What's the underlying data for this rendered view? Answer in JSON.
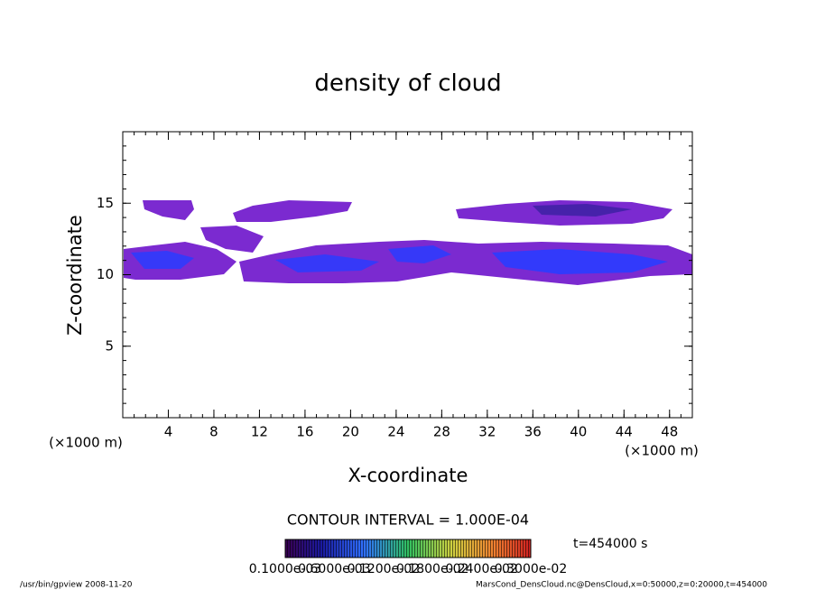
{
  "chart_data": {
    "type": "contour",
    "title": "density of cloud",
    "x_label": "X-coordinate",
    "y_label": "Z-coordinate",
    "x_unit": "(×1000 m)",
    "xlim": [
      0,
      50
    ],
    "xticks": [
      4,
      8,
      12,
      16,
      20,
      24,
      28,
      32,
      36,
      40,
      44,
      48
    ],
    "ylim": [
      0,
      20
    ],
    "yticks": [
      5,
      10,
      15
    ],
    "contour_interval": "CONTOUR INTERVAL = 1.000E-04",
    "time_label": "t=454000 s",
    "colorbar_labels": [
      "0.1000e-03",
      "0.6000e-03",
      "0.1200e-02",
      "0.1800e-02",
      "0.2400e-02",
      "0.3000e-02"
    ],
    "footer_left": "/usr/bin/gpview  2008-11-20",
    "footer_right": "MarsCond_DensCloud.nc@DensCloud,x=0:50000,z=0:20000,t=454000"
  }
}
